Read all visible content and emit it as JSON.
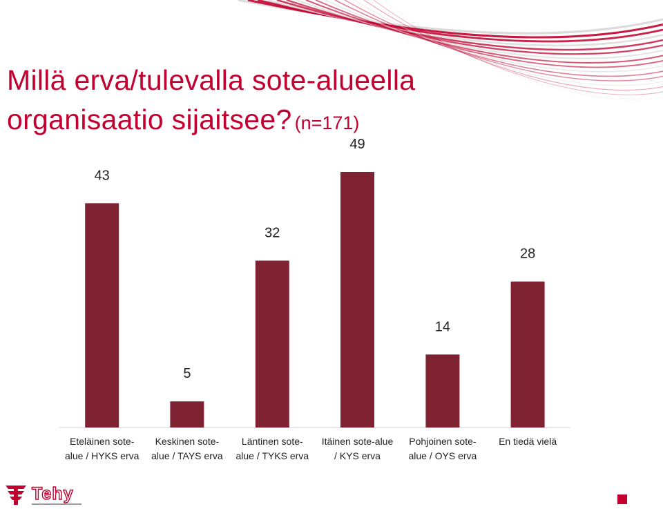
{
  "title": {
    "line1": "Millä erva/tulevalla sote-alueella",
    "line2": "organisaatio sijaitsee?",
    "sample": "(n=171)"
  },
  "logo": {
    "text": "Tehy"
  },
  "colors": {
    "accent": "#c2002f",
    "bar": "#7f2333",
    "baseline": "#d9d9d9",
    "swoosh": "#c2002f"
  },
  "chart_data": {
    "type": "bar",
    "categories": [
      [
        "Eteläinen sote-",
        "alue / HYKS erva"
      ],
      [
        "Keskinen sote-",
        "alue / TAYS erva"
      ],
      [
        "Läntinen sote-",
        "alue / TYKS erva"
      ],
      [
        "Itäinen sote-alue",
        "/ KYS erva"
      ],
      [
        "Pohjoinen sote-",
        "alue / OYS erva"
      ],
      [
        "En tiedä vielä"
      ]
    ],
    "values": [
      43,
      5,
      32,
      49,
      14,
      28
    ],
    "data_labels": [
      "43",
      "5",
      "32",
      "49",
      "14",
      "28"
    ],
    "ylim": [
      0,
      49
    ],
    "grid": false,
    "legend": "none"
  }
}
